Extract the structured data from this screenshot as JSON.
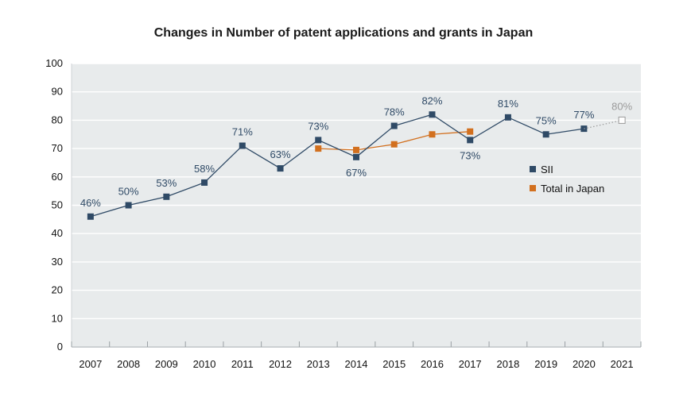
{
  "chart_data": {
    "type": "line",
    "title": "Changes in Number of patent applications and grants in Japan",
    "xlabel": "",
    "ylabel": "",
    "ylim": [
      0,
      100
    ],
    "yticks": [
      0,
      10,
      20,
      30,
      40,
      50,
      60,
      70,
      80,
      90,
      100
    ],
    "categories": [
      "2007",
      "2008",
      "2009",
      "2010",
      "2011",
      "2012",
      "2013",
      "2014",
      "2015",
      "2016",
      "2017",
      "2018",
      "2019",
      "2020",
      "2021"
    ],
    "grid": "horizontal",
    "legend_position": "right",
    "series": [
      {
        "name": "SII",
        "color": "#2f4a66",
        "values": [
          46,
          50,
          53,
          58,
          71,
          63,
          73,
          67,
          78,
          82,
          73,
          81,
          75,
          77,
          null
        ],
        "labels": [
          "46%",
          "50%",
          "53%",
          "58%",
          "71%",
          "63%",
          "73%",
          "67%",
          "78%",
          "82%",
          "73%",
          "81%",
          "75%",
          "77%",
          ""
        ]
      },
      {
        "name": "Total in Japan",
        "color": "#d2701f",
        "values": [
          null,
          null,
          null,
          null,
          null,
          null,
          70,
          69.5,
          71.5,
          75,
          76,
          null,
          null,
          null,
          null
        ]
      }
    ],
    "projection": {
      "category": "2021",
      "value": 80,
      "label": "80%",
      "color": "#9a9a9a"
    },
    "colors": {
      "plot_background": "#e8ebec",
      "grid": "#ffffff"
    }
  }
}
